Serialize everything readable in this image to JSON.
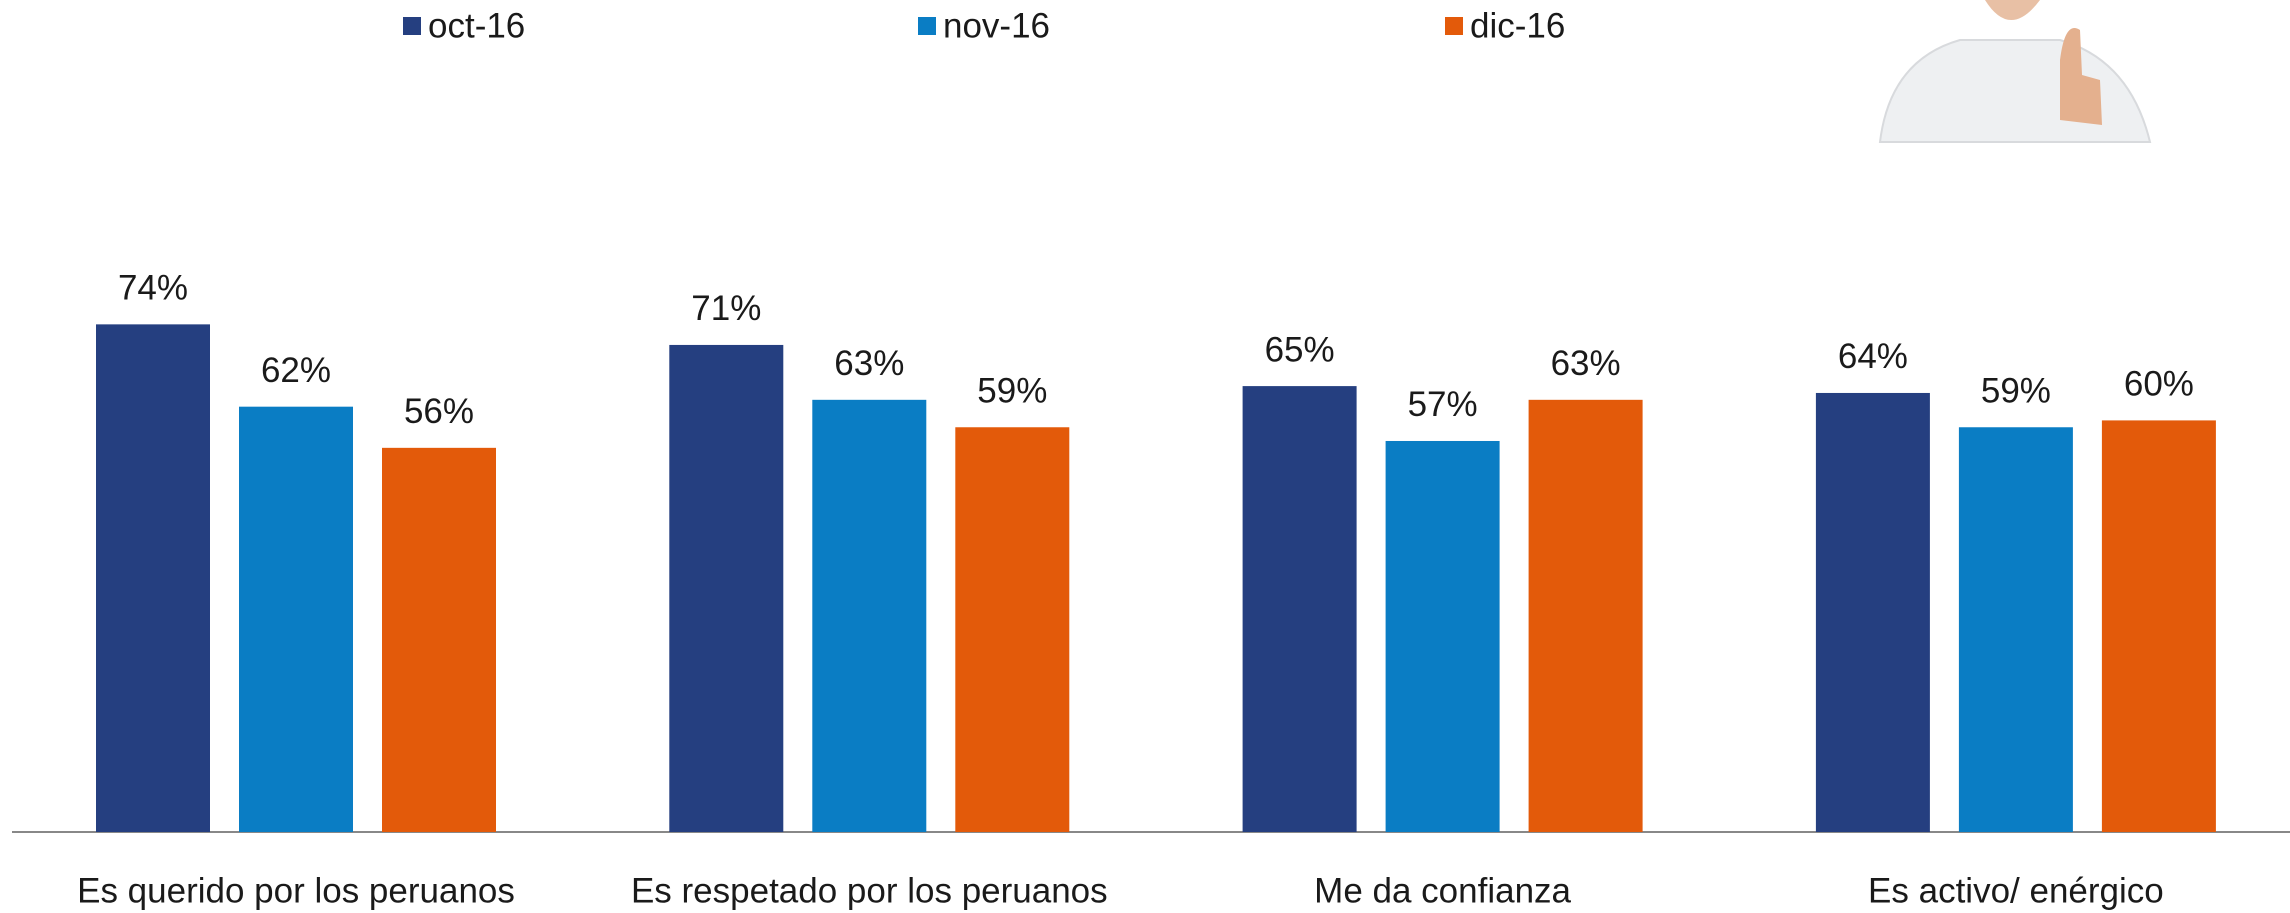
{
  "chart_data": {
    "type": "bar",
    "categories": [
      "Es querido por los peruanos",
      "Es respetado por los peruanos",
      "Me da confianza",
      "Es activo/ enérgico"
    ],
    "series": [
      {
        "name": "oct-16",
        "color": "#253f80",
        "values": [
          74,
          71,
          65,
          64
        ],
        "value_labels": [
          "74%",
          "71%",
          "65%",
          "64%"
        ]
      },
      {
        "name": "nov-16",
        "color": "#0a7dc4",
        "values": [
          62,
          63,
          57,
          59
        ],
        "value_labels": [
          "62%",
          "63%",
          "57%",
          "59%"
        ]
      },
      {
        "name": "dic-16",
        "color": "#e35a0a",
        "values": [
          56,
          59,
          63,
          60
        ],
        "value_labels": [
          "56%",
          "59%",
          "63%",
          "60%"
        ]
      }
    ]
  }
}
